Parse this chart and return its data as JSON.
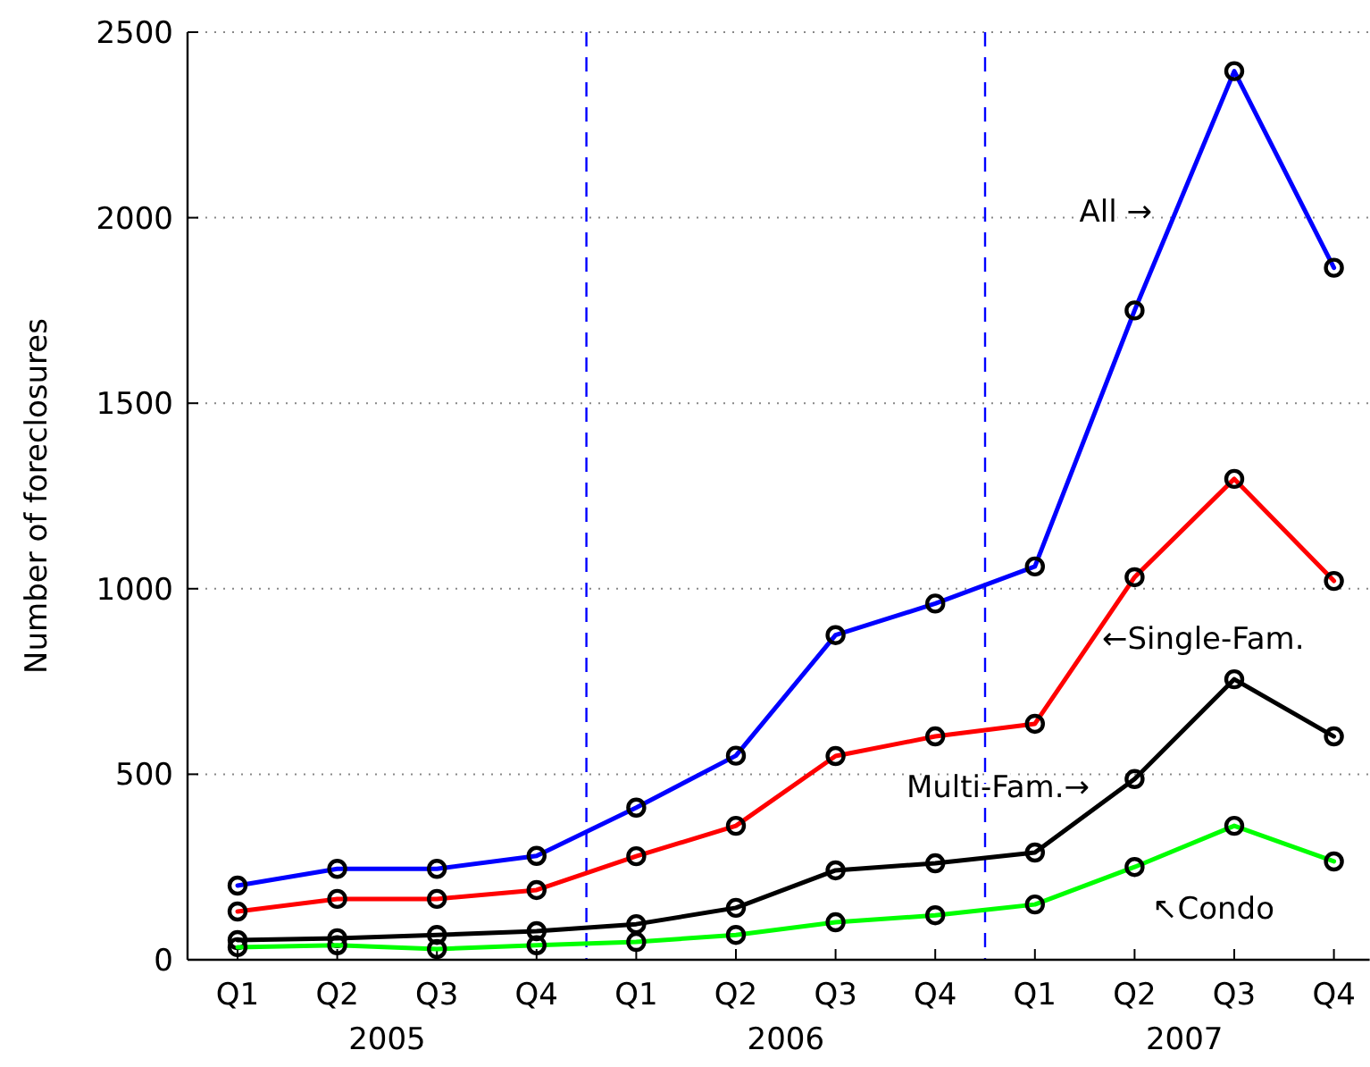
{
  "chart_data": {
    "type": "line",
    "ylabel": "Number of foreclosures",
    "categories": [
      "Q1",
      "Q2",
      "Q3",
      "Q4",
      "Q1",
      "Q2",
      "Q3",
      "Q4",
      "Q1",
      "Q2",
      "Q3",
      "Q4"
    ],
    "ylim": [
      0,
      2500
    ],
    "yticks": [
      0,
      500,
      1000,
      1500,
      2000,
      2500
    ],
    "grid": "y",
    "marker": "circle",
    "line_style": "solid",
    "series": [
      {
        "name": "All →",
        "color": "#0000ff",
        "values": [
          200,
          245,
          245,
          280,
          410,
          550,
          875,
          960,
          1060,
          1750,
          2395,
          1865
        ]
      },
      {
        "name": "←Single-Fam.",
        "color": "#ff0000",
        "values": [
          130,
          164,
          164,
          188,
          279,
          361,
          549,
          602,
          636,
          1031,
          1296,
          1021
        ]
      },
      {
        "name": "Multi-Fam.→",
        "color": "#000000",
        "values": [
          53,
          58,
          67,
          77,
          96,
          140,
          241,
          260,
          289,
          487,
          756,
          602
        ]
      },
      {
        "name": "↖Condo",
        "color": "#00ff00",
        "values": [
          34,
          39,
          29,
          39,
          48,
          67,
          101,
          120,
          149,
          250,
          361,
          265
        ]
      }
    ],
    "annotations": [
      "2005",
      "2006",
      "2007"
    ]
  }
}
